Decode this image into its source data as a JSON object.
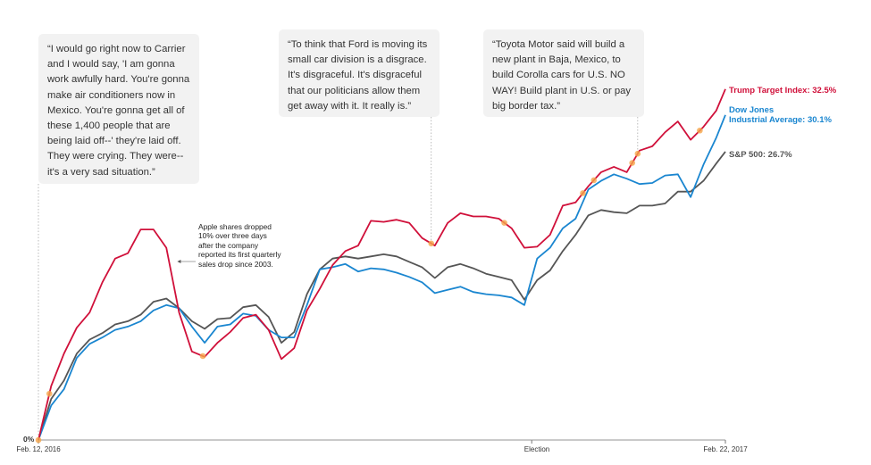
{
  "chart_data": {
    "type": "line",
    "title": "",
    "xlabel": "",
    "ylabel": "",
    "y_unit": "%",
    "ylim": [
      0,
      35
    ],
    "grid": false,
    "x_start": "2016-02-12",
    "x_end": "2017-02-22",
    "x": [
      "2016-02-12",
      "2016-02-19",
      "2016-02-26",
      "2016-03-04",
      "2016-03-11",
      "2016-03-18",
      "2016-03-25",
      "2016-04-01",
      "2016-04-08",
      "2016-04-15",
      "2016-04-22",
      "2016-04-29",
      "2016-05-06",
      "2016-05-13",
      "2016-05-20",
      "2016-05-27",
      "2016-06-03",
      "2016-06-10",
      "2016-06-17",
      "2016-06-24",
      "2016-07-01",
      "2016-07-08",
      "2016-07-15",
      "2016-07-22",
      "2016-07-29",
      "2016-08-05",
      "2016-08-12",
      "2016-08-19",
      "2016-08-26",
      "2016-09-02",
      "2016-09-09",
      "2016-09-16",
      "2016-09-23",
      "2016-09-30",
      "2016-10-07",
      "2016-10-14",
      "2016-10-21",
      "2016-10-28",
      "2016-11-04",
      "2016-11-11",
      "2016-11-18",
      "2016-11-25",
      "2016-12-02",
      "2016-12-09",
      "2016-12-16",
      "2016-12-23",
      "2016-12-30",
      "2017-01-06",
      "2017-01-13",
      "2017-01-20",
      "2017-01-27",
      "2017-02-03",
      "2017-02-10",
      "2017-02-17",
      "2017-02-22"
    ],
    "series": [
      {
        "name": "Trump Target Index",
        "label": "Trump Target Index: 32.5%",
        "color": "#d0103a",
        "values": [
          0,
          5.0,
          8.0,
          10.4,
          11.8,
          14.6,
          16.8,
          17.3,
          19.5,
          19.5,
          17.8,
          11.8,
          8.2,
          7.7,
          9.0,
          10.0,
          11.3,
          11.6,
          10.2,
          7.5,
          8.5,
          12.0,
          14.0,
          16.2,
          17.5,
          18.0,
          20.3,
          20.2,
          20.4,
          20.1,
          18.7,
          18.0,
          20.1,
          21.0,
          20.7,
          20.7,
          20.5,
          19.6,
          17.8,
          17.9,
          19.0,
          21.7,
          22.0,
          23.5,
          24.8,
          25.3,
          24.8,
          26.8,
          27.2,
          28.5,
          29.5,
          27.8,
          29.0,
          30.5,
          32.5
        ]
      },
      {
        "name": "Dow Jones Industrial Average",
        "label_lines": [
          "Dow Jones",
          "Industrial Average: 30.1%"
        ],
        "color": "#1a86d0",
        "values": [
          0,
          3.2,
          4.7,
          7.6,
          8.9,
          9.5,
          10.2,
          10.5,
          11.0,
          12.0,
          12.5,
          12.2,
          10.5,
          9.0,
          10.5,
          10.7,
          11.7,
          11.5,
          10.2,
          9.5,
          9.5,
          12.5,
          15.8,
          16.0,
          16.3,
          15.6,
          15.9,
          15.8,
          15.5,
          15.1,
          14.6,
          13.6,
          13.9,
          14.2,
          13.7,
          13.5,
          13.4,
          13.2,
          12.5,
          16.8,
          17.8,
          19.6,
          20.5,
          23.2,
          24.0,
          24.6,
          24.2,
          23.7,
          23.8,
          24.5,
          24.6,
          22.5,
          25.5,
          28.0,
          30.1
        ]
      },
      {
        "name": "S&P 500",
        "label": "S&P 500: 26.7%",
        "color": "#555555",
        "values": [
          0,
          3.8,
          5.5,
          8.0,
          9.3,
          9.9,
          10.7,
          11.0,
          11.6,
          12.8,
          13.1,
          12.2,
          11.0,
          10.3,
          11.2,
          11.3,
          12.3,
          12.5,
          11.4,
          9.0,
          10.0,
          13.5,
          15.8,
          16.8,
          17.0,
          16.8,
          17.0,
          17.2,
          17.0,
          16.5,
          16.0,
          15.0,
          16.0,
          16.3,
          15.9,
          15.4,
          15.1,
          14.8,
          13.0,
          14.8,
          15.7,
          17.5,
          19.0,
          20.8,
          21.3,
          21.1,
          21.0,
          21.7,
          21.7,
          21.9,
          23.0,
          23.0,
          24.0,
          25.6,
          26.7
        ]
      }
    ],
    "x_ticks": [
      {
        "date": "2016-02-12",
        "label": "Feb. 12, 2016"
      },
      {
        "date": "2016-11-08",
        "label": "Election"
      },
      {
        "date": "2017-02-22",
        "label": "Feb. 22, 2017"
      }
    ],
    "y_tick_label": "0%",
    "event_markers": {
      "color": "#f5a54a",
      "dates": [
        "2016-02-12",
        "2016-02-18",
        "2016-05-12",
        "2016-09-14",
        "2016-10-24",
        "2016-12-06",
        "2016-12-12",
        "2017-01-02",
        "2017-01-05",
        "2017-02-08"
      ]
    },
    "annotations": [
      {
        "lines": [
          "Apple shares dropped",
          "10% over three days",
          "after the company",
          "reported its first quarterly",
          "sales drop since 2003."
        ],
        "date": "2016-04-27"
      }
    ],
    "quotes": [
      {
        "date": "2016-02-12",
        "lines": [
          "“I would go right now to Carrier",
          "and I would say, 'I am gonna",
          "work awfully hard. You're gonna",
          "make air conditioners now in",
          "Mexico. You're gonna get all of",
          "these 1,400 people that are",
          "being laid off--' they're laid off.",
          "They were crying. They were--",
          "it's a very sad situation.”"
        ]
      },
      {
        "date": "2016-09-14",
        "lines": [
          "“To think that Ford is moving its",
          "small car division is a disgrace.",
          "It's disgraceful. It's disgraceful",
          "that our politicians allow them",
          "get away with it. It really is.”"
        ]
      },
      {
        "date": "2017-01-05",
        "lines": [
          "“Toyota Motor said will build a",
          "new plant in Baja, Mexico, to",
          "build Corolla cars for U.S. NO",
          "WAY! Build plant in U.S. or pay",
          "big border tax.”"
        ]
      }
    ]
  }
}
